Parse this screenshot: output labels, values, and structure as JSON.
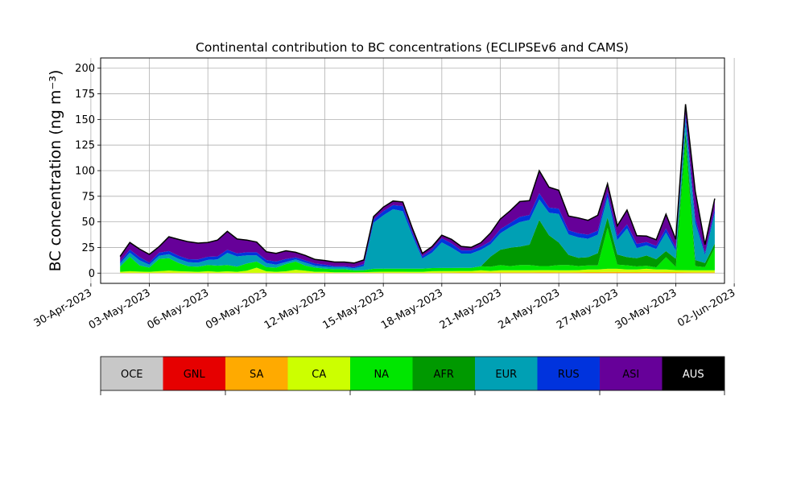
{
  "chart_data": {
    "type": "area",
    "stacked": true,
    "title": "Continental contribution to BC concentrations (ECLIPSEv6 and CAMS)",
    "ylabel": "BC concentration (ng m⁻³)",
    "xlabel": "",
    "ylim": [
      -10,
      210
    ],
    "xlim": [
      "2023-04-30T12:00",
      "2023-06-01T12:00"
    ],
    "grid": true,
    "legend_placement": "colorbar-below",
    "y_ticks": [
      0,
      25,
      50,
      75,
      100,
      125,
      150,
      175,
      200
    ],
    "x_ticks": [
      "30-Apr-2023",
      "03-May-2023",
      "06-May-2023",
      "09-May-2023",
      "12-May-2023",
      "15-May-2023",
      "18-May-2023",
      "21-May-2023",
      "24-May-2023",
      "27-May-2023",
      "30-May-2023",
      "02-Jun-2023"
    ],
    "x": [
      "2023-05-01T12:00",
      "2023-05-02T00:00",
      "2023-05-02T12:00",
      "2023-05-03T00:00",
      "2023-05-03T12:00",
      "2023-05-04T00:00",
      "2023-05-04T12:00",
      "2023-05-05T00:00",
      "2023-05-05T12:00",
      "2023-05-06T00:00",
      "2023-05-06T12:00",
      "2023-05-07T00:00",
      "2023-05-07T12:00",
      "2023-05-08T00:00",
      "2023-05-08T12:00",
      "2023-05-09T00:00",
      "2023-05-09T12:00",
      "2023-05-10T00:00",
      "2023-05-10T12:00",
      "2023-05-11T00:00",
      "2023-05-11T12:00",
      "2023-05-12T00:00",
      "2023-05-12T12:00",
      "2023-05-13T00:00",
      "2023-05-13T12:00",
      "2023-05-14T00:00",
      "2023-05-14T12:00",
      "2023-05-15T00:00",
      "2023-05-15T12:00",
      "2023-05-16T00:00",
      "2023-05-16T12:00",
      "2023-05-17T00:00",
      "2023-05-17T12:00",
      "2023-05-18T00:00",
      "2023-05-18T12:00",
      "2023-05-19T00:00",
      "2023-05-19T12:00",
      "2023-05-20T00:00",
      "2023-05-20T12:00",
      "2023-05-21T00:00",
      "2023-05-21T12:00",
      "2023-05-22T00:00",
      "2023-05-22T12:00",
      "2023-05-23T00:00",
      "2023-05-23T12:00",
      "2023-05-24T00:00",
      "2023-05-24T12:00",
      "2023-05-25T00:00",
      "2023-05-25T12:00",
      "2023-05-26T00:00",
      "2023-05-26T12:00",
      "2023-05-27T00:00",
      "2023-05-27T12:00",
      "2023-05-28T00:00",
      "2023-05-28T12:00",
      "2023-05-29T00:00",
      "2023-05-29T12:00",
      "2023-05-30T00:00",
      "2023-05-30T12:00",
      "2023-05-31T00:00",
      "2023-05-31T12:00",
      "2023-06-01T00:00"
    ],
    "series": [
      {
        "name": "OCE",
        "color": "#c8c8c8",
        "values": [
          0,
          0,
          0,
          0,
          0,
          0,
          0,
          0,
          0,
          0,
          0,
          0,
          0,
          0,
          0,
          0,
          0,
          0,
          0,
          0,
          0,
          0,
          0,
          0,
          0,
          0,
          0,
          0,
          0,
          0,
          0,
          0,
          0,
          0,
          0,
          0,
          0,
          0,
          0,
          0,
          0,
          0,
          0,
          0,
          0,
          0,
          0,
          0,
          0,
          0,
          0,
          0,
          0,
          0,
          0,
          0,
          0,
          0,
          0,
          0,
          0,
          0
        ]
      },
      {
        "name": "GNL",
        "color": "#e60000",
        "values": [
          0,
          0,
          0,
          0,
          0,
          0,
          0,
          0,
          0,
          0,
          0,
          0,
          0,
          0,
          0,
          0,
          0,
          0,
          0,
          0,
          0,
          0,
          0,
          0,
          0,
          0,
          0,
          0,
          0,
          0,
          0,
          0,
          0,
          0,
          0,
          0,
          0,
          0,
          0,
          0,
          0,
          0,
          0,
          0,
          0,
          0,
          0,
          0,
          0,
          0,
          0,
          0,
          0,
          0,
          0,
          0,
          0,
          0,
          0,
          0,
          0,
          0
        ]
      },
      {
        "name": "SA",
        "color": "#ffaa00",
        "values": [
          0.3,
          0.4,
          0.3,
          0.3,
          0.4,
          0.5,
          0.4,
          0.4,
          0.3,
          0.4,
          0.3,
          0.3,
          0.3,
          0.3,
          0.3,
          0.3,
          0.3,
          0.3,
          0.3,
          0.3,
          0.3,
          0.3,
          0.3,
          0.3,
          0.3,
          0.4,
          0.4,
          0.4,
          0.4,
          0.4,
          0.3,
          0.3,
          0.4,
          0.5,
          0.5,
          0.6,
          0.6,
          0.7,
          0.7,
          0.8,
          0.8,
          0.8,
          0.8,
          0.9,
          0.9,
          0.8,
          0.8,
          0.9,
          1,
          1,
          1.2,
          1.2,
          1.1,
          1,
          1.2,
          1.1,
          1,
          1,
          0.9,
          0.8,
          0.8,
          0.8
        ]
      },
      {
        "name": "CA",
        "color": "#ccff00",
        "values": [
          1,
          1.5,
          1.2,
          1,
          1.5,
          2,
          1.5,
          1.2,
          1,
          1.5,
          1,
          1.5,
          1,
          2,
          5,
          1.5,
          1,
          1.5,
          3,
          2,
          1,
          1,
          0.5,
          0.5,
          0.5,
          0.5,
          0.8,
          1,
          1,
          1,
          1,
          1,
          1.5,
          1.5,
          1.5,
          1.5,
          1.5,
          2,
          1.5,
          2,
          2,
          2,
          2,
          2,
          2,
          2,
          2,
          2,
          2.5,
          2.5,
          3,
          3,
          2.5,
          2.5,
          3,
          2.5,
          2.5,
          2,
          2,
          2,
          2,
          2
        ]
      },
      {
        "name": "NA",
        "color": "#00e600",
        "values": [
          5,
          14,
          6,
          4,
          12,
          12,
          8,
          5,
          5,
          6,
          6,
          6,
          5,
          7,
          6,
          4,
          4,
          7,
          8,
          5,
          4,
          3,
          3,
          3,
          2,
          2,
          3,
          3,
          3,
          3,
          3,
          3,
          3,
          3,
          3,
          3,
          3,
          4,
          4,
          5,
          4,
          5,
          5,
          4,
          4,
          5,
          5,
          4,
          4,
          4,
          40,
          4,
          4,
          3,
          3,
          2,
          12,
          3,
          125,
          4,
          3,
          22
        ]
      },
      {
        "name": "AFR",
        "color": "#009900",
        "values": [
          0,
          0,
          0,
          0,
          0,
          0,
          0,
          0,
          0,
          0,
          0,
          0,
          0,
          0,
          0,
          0,
          0,
          0,
          0,
          0,
          0,
          0,
          0,
          0,
          0,
          0,
          0,
          0,
          0,
          0,
          0,
          0,
          0,
          0,
          0,
          0,
          0,
          0,
          10,
          15,
          18,
          18,
          20,
          45,
          30,
          22,
          10,
          8,
          8,
          12,
          10,
          10,
          8,
          8,
          10,
          8,
          6,
          8,
          10,
          6,
          4,
          4
        ]
      },
      {
        "name": "EUR",
        "color": "#00a0b4",
        "values": [
          3,
          4,
          5,
          3,
          3,
          4,
          4,
          4,
          4,
          5,
          6,
          12,
          10,
          8,
          6,
          4,
          3,
          2,
          2,
          3,
          2,
          2,
          2,
          2,
          2,
          4,
          45,
          52,
          58,
          56,
          32,
          10,
          15,
          25,
          20,
          14,
          14,
          16,
          12,
          16,
          20,
          24,
          24,
          20,
          22,
          28,
          20,
          20,
          18,
          18,
          20,
          14,
          28,
          10,
          10,
          10,
          18,
          8,
          12,
          36,
          8,
          30
        ]
      },
      {
        "name": "RUS",
        "color": "#0033dd",
        "values": [
          2,
          3,
          3,
          2,
          3,
          3,
          3,
          3,
          3,
          3,
          3,
          3,
          3,
          3,
          3,
          3,
          3,
          3,
          2,
          2,
          2,
          2,
          1,
          1,
          1,
          2,
          3,
          4,
          4,
          5,
          3,
          2,
          3,
          4,
          4,
          3,
          3,
          3,
          3,
          4,
          4,
          5,
          5,
          6,
          5,
          5,
          4,
          4,
          4,
          4,
          5,
          4,
          4,
          4,
          3,
          3,
          4,
          3,
          5,
          5,
          2,
          4
        ]
      },
      {
        "name": "ASI",
        "color": "#660099",
        "values": [
          5,
          7,
          8,
          8,
          6,
          14,
          16,
          17,
          16,
          14,
          16,
          18,
          14,
          12,
          10,
          8,
          8,
          8,
          5,
          5,
          4,
          4,
          4,
          4,
          4,
          4,
          3,
          4,
          4,
          4,
          4,
          3,
          3,
          3,
          4,
          4,
          3,
          4,
          8,
          10,
          12,
          15,
          14,
          22,
          20,
          18,
          14,
          15,
          14,
          15,
          8,
          10,
          14,
          8,
          6,
          6,
          14,
          8,
          10,
          26,
          8,
          10
        ]
      },
      {
        "name": "AUS",
        "color": "#000000",
        "values": [
          0,
          0,
          0,
          0,
          0,
          0,
          0,
          0,
          0,
          0,
          0,
          0,
          0,
          0,
          0,
          0,
          0,
          0,
          0,
          0,
          0,
          0,
          0,
          0,
          0,
          0,
          0,
          0,
          0,
          0,
          0,
          0,
          0,
          0,
          0,
          0,
          0,
          0,
          0,
          0,
          0,
          0,
          0,
          0,
          0,
          0,
          0,
          0,
          0,
          0,
          0,
          0,
          0,
          0,
          0,
          0,
          0,
          0,
          0,
          0,
          0,
          0
        ]
      }
    ],
    "legend": [
      "OCE",
      "GNL",
      "SA",
      "CA",
      "NA",
      "AFR",
      "EUR",
      "RUS",
      "ASI",
      "AUS"
    ]
  }
}
